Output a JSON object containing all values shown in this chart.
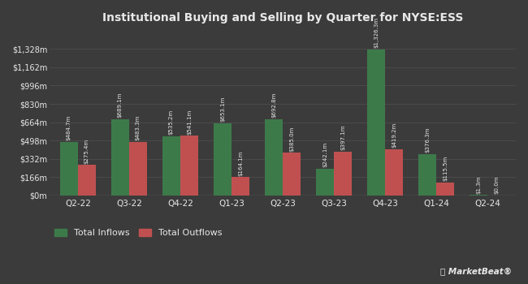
{
  "title": "Institutional Buying and Selling by Quarter for NYSE:ESS",
  "categories": [
    "Q2-22",
    "Q3-22",
    "Q4-22",
    "Q1-23",
    "Q2-23",
    "Q3-23",
    "Q4-23",
    "Q1-24",
    "Q2-24"
  ],
  "inflows": [
    484.7,
    689.1,
    535.2,
    653.1,
    692.8,
    242.1,
    1326.3,
    376.3,
    1.3
  ],
  "outflows": [
    275.4,
    483.3,
    541.1,
    164.1,
    385.0,
    397.1,
    419.2,
    115.5,
    0.0
  ],
  "inflow_labels": [
    "$484.7m",
    "$689.1m",
    "$535.2m",
    "$653.1m",
    "$692.8m",
    "$242.1m",
    "$1,326.3m",
    "$376.3m",
    "$1.3m"
  ],
  "outflow_labels": [
    "$275.4m",
    "$483.3m",
    "$541.1m",
    "$164.1m",
    "$385.0m",
    "$397.1m",
    "$419.2m",
    "$115.5m",
    "$0.0m"
  ],
  "inflow_color": "#3d7a4a",
  "outflow_color": "#c05050",
  "bg_color": "#3b3b3b",
  "text_color": "#e8e8e8",
  "grid_color": "#4e4e4e",
  "ylabel_vals": [
    0,
    166,
    332,
    498,
    664,
    830,
    996,
    1162,
    1328
  ],
  "ylabel_texts": [
    "$0m",
    "$166m",
    "$332m",
    "$498m",
    "$664m",
    "$830m",
    "$996m",
    "$1,162m",
    "$1,328m"
  ],
  "ylim": [
    0,
    1500
  ],
  "legend_inflow": "Total Inflows",
  "legend_outflow": "Total Outflows",
  "bar_width": 0.35
}
